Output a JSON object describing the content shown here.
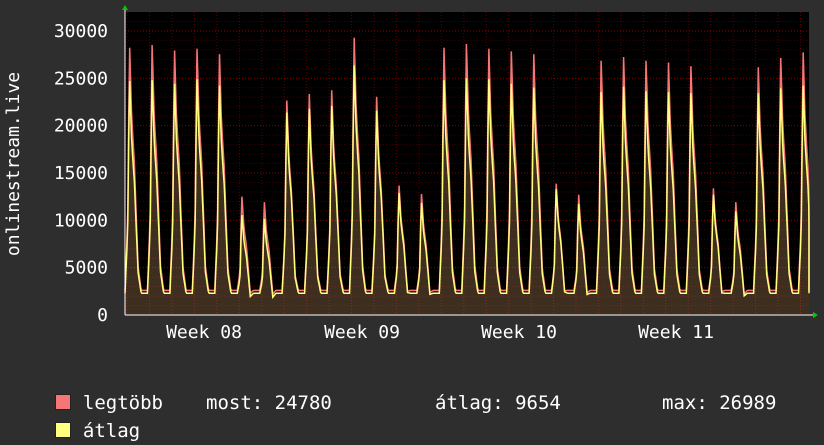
{
  "chart_data": {
    "type": "area",
    "ylabel": "onlinestream.live",
    "yticks": [
      0,
      5000,
      10000,
      15000,
      20000,
      25000,
      30000
    ],
    "ylim": [
      0,
      32000
    ],
    "x_week_labels": [
      "Week 08",
      "Week 09",
      "Week 10",
      "Week 11"
    ],
    "colors": {
      "legtobb": "#f47676",
      "atlag": "#ffff80",
      "background": "#2e2e2e",
      "plot_bg": "#000000",
      "grid": "#ff0000"
    },
    "series": [
      {
        "name": "legtöbb",
        "daily_peaks": [
          28900,
          29200,
          28600,
          28800,
          28200,
          12800,
          12200,
          23200,
          23900,
          24300,
          30000,
          23600,
          14000,
          13100,
          28900,
          29300,
          28800,
          28500,
          28200,
          14200,
          13000,
          27500,
          27900,
          27500,
          27300,
          26900,
          13700,
          12200,
          26800,
          27800,
          28400
        ]
      },
      {
        "name": "átlag",
        "daily_peaks": [
          25300,
          25400,
          25000,
          25500,
          24800,
          10800,
          10400,
          21900,
          22300,
          22600,
          26989,
          22100,
          13200,
          12100,
          25400,
          25600,
          25500,
          25000,
          24600,
          13600,
          12000,
          24100,
          24700,
          24200,
          24100,
          24000,
          13000,
          11200,
          24000,
          24500,
          24780
        ]
      }
    ]
  },
  "legend": {
    "max_label": "legtöbb",
    "avg_label": "átlag",
    "most": "most: 24780",
    "atlag": "átlag: 9654",
    "max": "max: 26989"
  }
}
